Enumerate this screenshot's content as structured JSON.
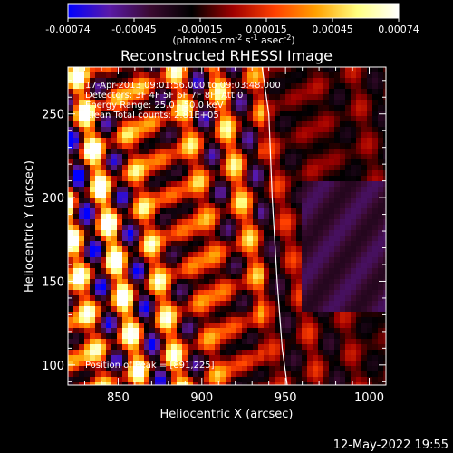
{
  "chart_data": {
    "type": "heatmap",
    "title": "Reconstructed RHESSI Image",
    "annotations": [
      "17-Apr-2013 09:01:56.000 to 09:03:48.000",
      "Detectors: 3F 4F 5F 6F 7F 8F, Att 0",
      "Energy Range: 25.0 - 50.0 keV",
      "Clean    Total counts: 2.81E+05"
    ],
    "peak_label": "Position of Peak = [891,225]",
    "xlabel": "Heliocentric X (arcsec)",
    "ylabel": "Heliocentric Y (arcsec)",
    "xlim": [
      820,
      1010
    ],
    "ylim": [
      88,
      278
    ],
    "xticks": [
      850,
      900,
      950,
      1000
    ],
    "yticks": [
      100,
      150,
      200,
      250
    ],
    "colorbar": {
      "ticks": [
        "-0.00074",
        "-0.00045",
        "-0.00015",
        "0.00015",
        "0.00045",
        "0.00074"
      ],
      "label_main": "(photons cm",
      "label_exp1": "-2",
      "label_mid1": " s",
      "label_exp2": "-1",
      "label_mid2": " asec",
      "label_exp3": "-2",
      "label_end": ")",
      "colors": [
        "#0000ff",
        "#5a1aa8",
        "#3a0a30",
        "#000000",
        "#a00000",
        "#ff4000",
        "#ffa000",
        "#ffff80",
        "#ffffff"
      ]
    },
    "limb_points": [
      [
        936,
        278
      ],
      [
        940,
        250
      ],
      [
        942,
        200
      ],
      [
        945,
        150
      ],
      [
        948,
        110
      ],
      [
        951,
        88
      ]
    ],
    "peak_position": [
      891,
      225
    ],
    "grid": false
  },
  "footer": {
    "timestamp": "12-May-2022 19:55"
  }
}
